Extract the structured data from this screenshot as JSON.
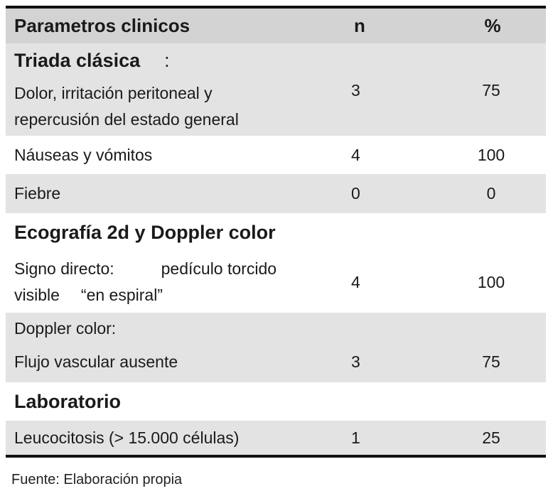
{
  "table": {
    "headers": {
      "param": "Parametros clinicos",
      "n": "n",
      "pct": "%"
    },
    "sections": [
      {
        "title": "Triada clásica",
        "title_suffix": ":",
        "rows": [
          {
            "line1": "Dolor, irritación peritoneal  y",
            "line2": "repercusión del estado general",
            "n": "3",
            "pct": "75"
          },
          {
            "line1": "Náuseas  y vómitos",
            "n": "4",
            "pct": "100"
          },
          {
            "line1": "Fiebre",
            "n": "0",
            "pct": "0"
          }
        ]
      },
      {
        "title": "Ecografía 2d y Doppler color",
        "rows": [
          {
            "line1a": "Signo directo:",
            "line1b": "pedículo torcido",
            "line2a": "visible",
            "line2b": "“en espiral”",
            "n": "4",
            "pct": "100"
          },
          {
            "line1": "Doppler color:",
            "line2": "Flujo vascular ausente",
            "n": "3",
            "pct": "75"
          }
        ]
      },
      {
        "title": "Laboratorio",
        "rows": [
          {
            "line1": "Leucocitosis (> 15.000 células)",
            "n": "1",
            "pct": "25"
          }
        ]
      }
    ]
  },
  "footnote": "Fuente: Elaboración propia"
}
